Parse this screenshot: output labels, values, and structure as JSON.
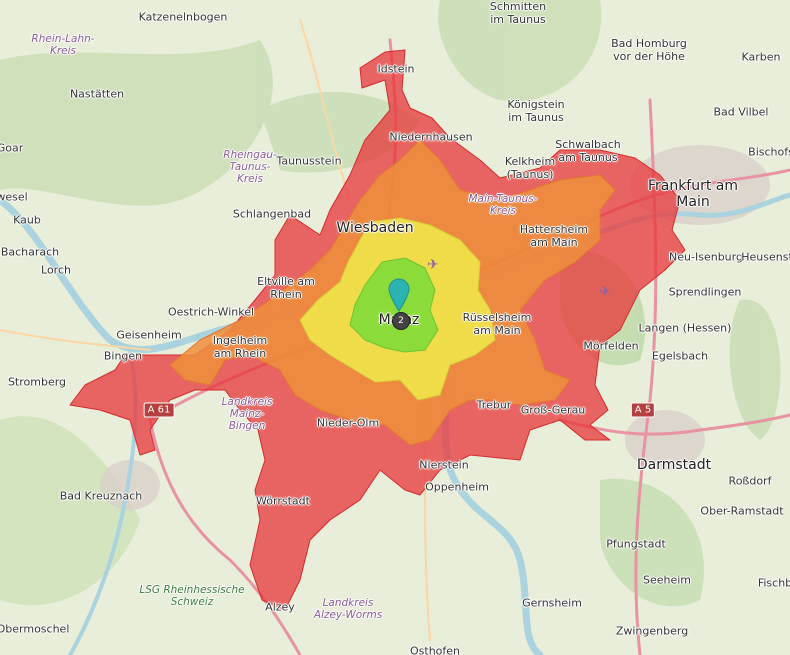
{
  "map": {
    "colors": {
      "zone_red": "#e8363a",
      "zone_orange": "#ef8f3c",
      "zone_yellow": "#f0e64a",
      "zone_green": "#7fdc3a",
      "motorway": "#e892a2",
      "primary": "#fcd6a4",
      "water": "#aad3df",
      "marker": "#2ab3b0"
    },
    "marker": {
      "icon": "map-pin-icon",
      "cluster_count": "2"
    },
    "places": {
      "katzenelnbogen": "Katzenelnbogen",
      "schmitten": "Schmitten\nim Taunus",
      "rhein_lahn": "Rhein-Lahn-\nKreis",
      "bad_homburg": "Bad Homburg\nvor der Höhe",
      "karben": "Karben",
      "idstein": "Idstein",
      "nastaetten": "Nastätten",
      "koenigstein": "Königstein\nim Taunus",
      "bad_vilbel": "Bad Vilbel",
      "goar": "Goar",
      "niedernhausen": "Niedernhausen",
      "schwalbach": "Schwalbach\nam Taunus",
      "bischofs": "Bischofs",
      "rheingau_taunus": "Rheingau-\nTaunus-\nKreis",
      "taunusstein": "Taunusstein",
      "kelkheim": "Kelkheim\n(Taunus)",
      "frankfurt": "Frankfurt am\nMain",
      "wesel": "wesel",
      "main_taunus": "Main-Taunus-\nKreis",
      "kaub": "Kaub",
      "schlangenbad": "Schlangenbad",
      "wiesbaden": "Wiesbaden",
      "hattersheim": "Hattersheim\nam Main",
      "bacharach": "Bacharach",
      "lorch": "Lorch",
      "neu_isenburg": "Neu-Isenburg",
      "heusenstamm": "Heusenst",
      "eltville": "Eltville am\nRhein",
      "oestrich": "Oestrich-Winkel",
      "sprendlingen": "Sprendlingen",
      "geisenheim": "Geisenheim",
      "mainz": "Mainz",
      "ruesselsheim": "Rüsselsheim\nam Main",
      "langen": "Langen (Hessen)",
      "ingelheim": "Ingelheim\nam Rhein",
      "moerfelden": "Mörfelden",
      "egelsbach": "Egelsbach",
      "bingen": "Bingen",
      "stromberg": "Stromberg",
      "landkreis_mb": "Landkreis\nMainz-\nBingen",
      "trebur": "Trebur",
      "gross_gerau": "Groß-Gerau",
      "nieder_olm": "Nieder-Olm",
      "darmstadt": "Darmstadt",
      "nierstein": "Nierstein",
      "rossdorf": "Roßdorf",
      "oppenheim": "Oppenheim",
      "bad_kreuznach": "Bad Kreuznach",
      "woerrstadt": "Wörrstadt",
      "ober_ramstadt": "Ober-Ramstadt",
      "pfungstadt": "Pfungstadt",
      "lsg": "LSG Rheinhessische\nSchweiz",
      "seeheim": "Seeheim",
      "fischb": "Fischb",
      "alzey": "Alzey",
      "landkreis_aw": "Landkreis\nAlzey-Worms",
      "gernsheim": "Gernsheim",
      "obermoschel": "Obermoschel",
      "zwingenberg": "Zwingenberg",
      "osthofen": "Osthofen"
    },
    "roads": {
      "a61": "A 61",
      "a5": "A 5"
    }
  }
}
